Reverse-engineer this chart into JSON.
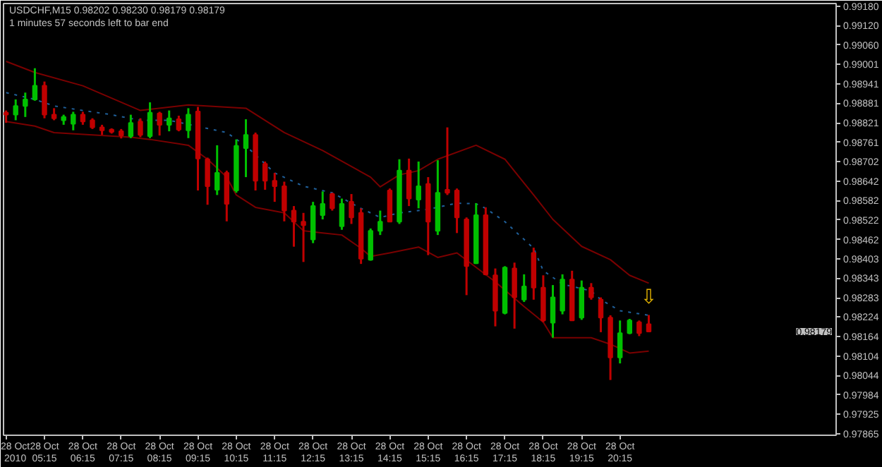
{
  "chart_data": {
    "type": "candlestick",
    "title": "USDCHF,M15  0.98202 0.98230 0.98179 0.98179",
    "subtitle": "1 minutes 57 seconds left to bar end",
    "x": [
      "2010-10-28T04:15",
      "2010-10-28T04:30",
      "2010-10-28T04:45",
      "2010-10-28T05:00",
      "2010-10-28T05:15",
      "2010-10-28T05:30",
      "2010-10-28T05:45",
      "2010-10-28T06:00",
      "2010-10-28T06:15",
      "2010-10-28T06:30",
      "2010-10-28T06:45",
      "2010-10-28T07:00",
      "2010-10-28T07:15",
      "2010-10-28T07:30",
      "2010-10-28T07:45",
      "2010-10-28T08:00",
      "2010-10-28T08:15",
      "2010-10-28T08:30",
      "2010-10-28T08:45",
      "2010-10-28T09:00",
      "2010-10-28T09:15",
      "2010-10-28T09:30",
      "2010-10-28T09:45",
      "2010-10-28T10:00",
      "2010-10-28T10:15",
      "2010-10-28T10:30",
      "2010-10-28T10:45",
      "2010-10-28T11:00",
      "2010-10-28T11:15",
      "2010-10-28T11:30",
      "2010-10-28T11:45",
      "2010-10-28T12:00",
      "2010-10-28T12:15",
      "2010-10-28T12:30",
      "2010-10-28T12:45",
      "2010-10-28T13:00",
      "2010-10-28T13:15",
      "2010-10-28T13:30",
      "2010-10-28T13:45",
      "2010-10-28T14:00",
      "2010-10-28T14:15",
      "2010-10-28T14:30",
      "2010-10-28T14:45",
      "2010-10-28T15:00",
      "2010-10-28T15:15",
      "2010-10-28T15:30",
      "2010-10-28T15:45",
      "2010-10-28T16:00",
      "2010-10-28T16:15",
      "2010-10-28T16:30",
      "2010-10-28T16:45",
      "2010-10-28T17:00",
      "2010-10-28T17:15",
      "2010-10-28T17:30",
      "2010-10-28T17:45",
      "2010-10-28T18:00",
      "2010-10-28T18:15",
      "2010-10-28T18:30",
      "2010-10-28T18:45",
      "2010-10-28T19:00",
      "2010-10-28T19:15",
      "2010-10-28T19:30",
      "2010-10-28T19:45",
      "2010-10-28T20:00",
      "2010-10-28T20:15",
      "2010-10-28T20:30",
      "2010-10-28T20:45",
      "2010-10-28T21:00"
    ],
    "ohlc": [
      [
        0.98852,
        0.98859,
        0.98821,
        0.98846
      ],
      [
        0.98846,
        0.98893,
        0.98829,
        0.98873
      ],
      [
        0.98873,
        0.98914,
        0.98839,
        0.98893
      ],
      [
        0.98893,
        0.98989,
        0.98889,
        0.98935
      ],
      [
        0.98935,
        0.98948,
        0.98835,
        0.98846
      ],
      [
        0.98846,
        0.98866,
        0.98829,
        0.98835
      ],
      [
        0.98829,
        0.98846,
        0.98815,
        0.98839
      ],
      [
        0.98818,
        0.98855,
        0.98798,
        0.98846
      ],
      [
        0.98846,
        0.98855,
        0.98815,
        0.98825
      ],
      [
        0.98829,
        0.98835,
        0.98802,
        0.98807
      ],
      [
        0.98807,
        0.98815,
        0.98784,
        0.98798
      ],
      [
        0.988,
        0.98804,
        0.98788,
        0.98793
      ],
      [
        0.98795,
        0.98802,
        0.98773,
        0.98782
      ],
      [
        0.9878,
        0.98846,
        0.98774,
        0.98821
      ],
      [
        0.98825,
        0.98835,
        0.98777,
        0.98784
      ],
      [
        0.9878,
        0.98884,
        0.98774,
        0.98852
      ],
      [
        0.9885,
        0.98855,
        0.98782,
        0.98815
      ],
      [
        0.98815,
        0.98859,
        0.98795,
        0.98835
      ],
      [
        0.98832,
        0.98843,
        0.98795,
        0.988
      ],
      [
        0.98798,
        0.98866,
        0.98774,
        0.98846
      ],
      [
        0.98856,
        0.9887,
        0.98613,
        0.98711
      ],
      [
        0.98709,
        0.98714,
        0.98569,
        0.98626
      ],
      [
        0.98615,
        0.98752,
        0.98599,
        0.98667
      ],
      [
        0.98667,
        0.98674,
        0.98518,
        0.98572
      ],
      [
        0.98613,
        0.9877,
        0.98606,
        0.9875
      ],
      [
        0.98743,
        0.98832,
        0.98654,
        0.98784
      ],
      [
        0.98784,
        0.98791,
        0.98613,
        0.98643
      ],
      [
        0.98695,
        0.98702,
        0.98615,
        0.98643
      ],
      [
        0.98643,
        0.98667,
        0.98578,
        0.98626
      ],
      [
        0.98626,
        0.9864,
        0.98518,
        0.98551
      ],
      [
        0.98551,
        0.98565,
        0.9844,
        0.98517
      ],
      [
        0.98517,
        0.98544,
        0.98393,
        0.98506
      ],
      [
        0.98462,
        0.98578,
        0.98451,
        0.98565
      ],
      [
        0.98537,
        0.9861,
        0.98524,
        0.98572
      ],
      [
        0.98602,
        0.98606,
        0.98551,
        0.98558
      ],
      [
        0.98503,
        0.98588,
        0.98492,
        0.98572
      ],
      [
        0.98578,
        0.98602,
        0.9851,
        0.9853
      ],
      [
        0.98544,
        0.98558,
        0.98387,
        0.98403
      ],
      [
        0.984,
        0.98496,
        0.98397,
        0.98489
      ],
      [
        0.98489,
        0.98551,
        0.98476,
        0.98517
      ],
      [
        0.98613,
        0.98619,
        0.98517,
        0.98517
      ],
      [
        0.98517,
        0.98709,
        0.9851,
        0.98674
      ],
      [
        0.98674,
        0.98711,
        0.98565,
        0.98588
      ],
      [
        0.98585,
        0.98702,
        0.98558,
        0.98626
      ],
      [
        0.98633,
        0.98654,
        0.98414,
        0.98517
      ],
      [
        0.98489,
        0.98706,
        0.98476,
        0.98606
      ],
      [
        0.98615,
        0.98807,
        0.98599,
        0.98606
      ],
      [
        0.98613,
        0.98619,
        0.98482,
        0.9853
      ],
      [
        0.98524,
        0.9853,
        0.98291,
        0.9838
      ],
      [
        0.98389,
        0.98574,
        0.98387,
        0.98537
      ],
      [
        0.98537,
        0.98561,
        0.98352,
        0.98355
      ],
      [
        0.98352,
        0.98373,
        0.98195,
        0.98243
      ],
      [
        0.98236,
        0.9838,
        0.98232,
        0.98376
      ],
      [
        0.98373,
        0.98391,
        0.98188,
        0.98284
      ],
      [
        0.98277,
        0.98355,
        0.9827,
        0.98318
      ],
      [
        0.98421,
        0.98437,
        0.98277,
        0.98314
      ],
      [
        0.98314,
        0.98352,
        0.98208,
        0.98213
      ],
      [
        0.98206,
        0.98322,
        0.9816,
        0.98284
      ],
      [
        0.98243,
        0.98355,
        0.98232,
        0.98339
      ],
      [
        0.98339,
        0.98366,
        0.98213,
        0.98213
      ],
      [
        0.98222,
        0.98336,
        0.98215,
        0.98314
      ],
      [
        0.98314,
        0.98328,
        0.98277,
        0.98284
      ],
      [
        0.98277,
        0.98284,
        0.98177,
        0.98222
      ],
      [
        0.98222,
        0.98229,
        0.9803,
        0.98099
      ],
      [
        0.98099,
        0.98213,
        0.98081,
        0.98174
      ],
      [
        0.98174,
        0.98218,
        0.98171,
        0.98213
      ],
      [
        0.98208,
        0.98213,
        0.98165,
        0.98174
      ],
      [
        0.98202,
        0.9823,
        0.98179,
        0.98179
      ]
    ],
    "colors": [
      "#c00000",
      "#00c000",
      "#00c000",
      "#00c000",
      "#c00000",
      "#c00000",
      "#00c000",
      "#00c000",
      "#c00000",
      "#c00000",
      "#c00000",
      "#c00000",
      "#c00000",
      "#00c000",
      "#c00000",
      "#00c000",
      "#c00000",
      "#00c000",
      "#c00000",
      "#00c000",
      "#c00000",
      "#c00000",
      "#00c000",
      "#c00000",
      "#00c000",
      "#00c000",
      "#c00000",
      "#c00000",
      "#c00000",
      "#c00000",
      "#c00000",
      "#c00000",
      "#00c000",
      "#00c000",
      "#c00000",
      "#00c000",
      "#c00000",
      "#c00000",
      "#00c000",
      "#00c000",
      "#c00000",
      "#00c000",
      "#c00000",
      "#00c000",
      "#c00000",
      "#00c000",
      "#c00000",
      "#c00000",
      "#c00000",
      "#00c000",
      "#c00000",
      "#c00000",
      "#00c000",
      "#c00000",
      "#00c000",
      "#c00000",
      "#c00000",
      "#00c000",
      "#00c000",
      "#c00000",
      "#00c000",
      "#c00000",
      "#c00000",
      "#c00000",
      "#00c000",
      "#00c000",
      "#c00000",
      "#c00000"
    ],
    "series": [
      {
        "type": "line",
        "color": "#7a0000",
        "line_style": "solid",
        "x": [
          "2010-10-28T04:15",
          "2010-10-28T05:00",
          "2010-10-28T06:15",
          "2010-10-28T07:45",
          "2010-10-28T09:00",
          "2010-10-28T10:30",
          "2010-10-28T11:30",
          "2010-10-28T12:30",
          "2010-10-28T13:45",
          "2010-10-28T14:00",
          "2010-10-28T14:30",
          "2010-10-28T15:00",
          "2010-10-28T15:30",
          "2010-10-28T16:30",
          "2010-10-28T17:15",
          "2010-10-28T18:00",
          "2010-10-28T18:30",
          "2010-10-28T19:15",
          "2010-10-28T20:00",
          "2010-10-28T20:30",
          "2010-10-28T21:00"
        ],
        "values": [
          0.9901,
          0.98976,
          0.98935,
          0.98859,
          0.98876,
          0.98866,
          0.98791,
          0.98736,
          0.98654,
          0.98624,
          0.98661,
          0.98674,
          0.98709,
          0.98752,
          0.98709,
          0.98599,
          0.98524,
          0.98441,
          0.984,
          0.98352,
          0.98328
        ]
      },
      {
        "type": "line",
        "color": "#1f5f99",
        "line_style": "dotted",
        "x": [
          "2010-10-28T04:15",
          "2010-10-28T05:00",
          "2010-10-28T05:30",
          "2010-10-28T06:15",
          "2010-10-28T07:00",
          "2010-10-28T07:45",
          "2010-10-28T08:30",
          "2010-10-28T10:00",
          "2010-10-28T10:30",
          "2010-10-28T11:15",
          "2010-10-28T12:00",
          "2010-10-28T12:45",
          "2010-10-28T13:30",
          "2010-10-28T14:00",
          "2010-10-28T14:30",
          "2010-10-28T15:15",
          "2010-10-28T16:00",
          "2010-10-28T16:30",
          "2010-10-28T16:45",
          "2010-10-28T17:15",
          "2010-10-28T18:00",
          "2010-10-28T18:15",
          "2010-10-28T18:45",
          "2010-10-28T19:30",
          "2010-10-28T19:45",
          "2010-10-28T20:15",
          "2010-10-28T21:00"
        ],
        "values": [
          0.98914,
          0.98893,
          0.98873,
          0.98859,
          0.98846,
          0.98829,
          0.98829,
          0.98791,
          0.9875,
          0.98667,
          0.98626,
          0.98606,
          0.98558,
          0.9853,
          0.98544,
          0.98555,
          0.98574,
          0.98572,
          0.98558,
          0.98517,
          0.98435,
          0.98366,
          0.98325,
          0.98304,
          0.98277,
          0.98243,
          0.98229
        ]
      },
      {
        "type": "line",
        "color": "#7a0000",
        "line_style": "solid",
        "x": [
          "2010-10-28T04:15",
          "2010-10-28T05:00",
          "2010-10-28T05:30",
          "2010-10-28T06:30",
          "2010-10-28T07:30",
          "2010-10-28T08:00",
          "2010-10-28T09:00",
          "2010-10-28T09:30",
          "2010-10-28T10:00",
          "2010-10-28T10:15",
          "2010-10-28T10:45",
          "2010-10-28T11:30",
          "2010-10-28T12:00",
          "2010-10-28T12:30",
          "2010-10-28T13:00",
          "2010-10-28T13:30",
          "2010-10-28T13:45",
          "2010-10-28T14:15",
          "2010-10-28T15:00",
          "2010-10-28T15:30",
          "2010-10-28T16:00",
          "2010-10-28T17:00",
          "2010-10-28T17:45",
          "2010-10-28T18:15",
          "2010-10-28T18:30",
          "2010-10-28T19:30",
          "2010-10-28T20:00",
          "2010-10-28T20:30",
          "2010-10-28T21:00"
        ],
        "values": [
          0.98825,
          0.98811,
          0.98791,
          0.98784,
          0.98777,
          0.9877,
          0.98752,
          0.98709,
          0.98654,
          0.98599,
          0.98561,
          0.98544,
          0.98489,
          0.98482,
          0.98476,
          0.98435,
          0.9841,
          0.98421,
          0.98439,
          0.98407,
          0.98421,
          0.98332,
          0.98256,
          0.98208,
          0.9816,
          0.9816,
          0.9814,
          0.98113,
          0.98119
        ]
      }
    ],
    "annotations": [
      {
        "text": "⇩",
        "x": "2010-10-28T21:00",
        "y": 0.9823
      },
      "0.98179"
    ],
    "xlim": [
      "2010-10-28T04:11",
      "2010-10-29T01:53"
    ],
    "ylim": [
      0.9786,
      0.99188
    ],
    "xticks": [
      {
        "value": "2010-10-28T04:15",
        "label": "28 Oct 2010"
      },
      {
        "value": "2010-10-28T05:15",
        "label": "28 Oct 05:15"
      },
      {
        "value": "2010-10-28T06:15",
        "label": "28 Oct 06:15"
      },
      {
        "value": "2010-10-28T07:15",
        "label": "28 Oct 07:15"
      },
      {
        "value": "2010-10-28T08:15",
        "label": "28 Oct 08:15"
      },
      {
        "value": "2010-10-28T09:15",
        "label": "28 Oct 09:15"
      },
      {
        "value": "2010-10-28T10:15",
        "label": "28 Oct 10:15"
      },
      {
        "value": "2010-10-28T11:15",
        "label": "28 Oct 11:15"
      },
      {
        "value": "2010-10-28T12:15",
        "label": "28 Oct 12:15"
      },
      {
        "value": "2010-10-28T13:15",
        "label": "28 Oct 13:15"
      },
      {
        "value": "2010-10-28T14:15",
        "label": "28 Oct 14:15"
      },
      {
        "value": "2010-10-28T15:15",
        "label": "28 Oct 15:15"
      },
      {
        "value": "2010-10-28T16:15",
        "label": "28 Oct 16:15"
      },
      {
        "value": "2010-10-28T17:15",
        "label": "28 Oct 17:15"
      },
      {
        "value": "2010-10-28T18:15",
        "label": "28 Oct 18:15"
      },
      {
        "value": "2010-10-28T19:15",
        "label": "28 Oct 19:15"
      },
      {
        "value": "2010-10-28T20:15",
        "label": "28 Oct 20:15"
      }
    ],
    "yticks": [
      {
        "value": 0.9918,
        "label": "0.99180"
      },
      {
        "value": 0.9912,
        "label": "0.99120"
      },
      {
        "value": 0.9906,
        "label": "0.99060"
      },
      {
        "value": 0.99001,
        "label": "0.99001"
      },
      {
        "value": 0.98941,
        "label": "0.98941"
      },
      {
        "value": 0.98881,
        "label": "0.98881"
      },
      {
        "value": 0.98821,
        "label": "0.98821"
      },
      {
        "value": 0.98761,
        "label": "0.98761"
      },
      {
        "value": 0.98702,
        "label": "0.98702"
      },
      {
        "value": 0.98642,
        "label": "0.98642"
      },
      {
        "value": 0.98582,
        "label": "0.98582"
      },
      {
        "value": 0.98522,
        "label": "0.98522"
      },
      {
        "value": 0.98462,
        "label": "0.98462"
      },
      {
        "value": 0.98403,
        "label": "0.98403"
      },
      {
        "value": 0.98343,
        "label": "0.98343"
      },
      {
        "value": 0.98283,
        "label": "0.98283"
      },
      {
        "value": 0.98224,
        "label": "0.98224"
      },
      {
        "value": 0.98164,
        "label": "0.98164"
      },
      {
        "value": 0.98104,
        "label": "0.98104"
      },
      {
        "value": 0.98044,
        "label": "0.98044"
      },
      {
        "value": 0.97984,
        "label": "0.97984"
      },
      {
        "value": 0.97925,
        "label": "0.97925"
      },
      {
        "value": 0.97865,
        "label": "0.97865"
      }
    ]
  }
}
